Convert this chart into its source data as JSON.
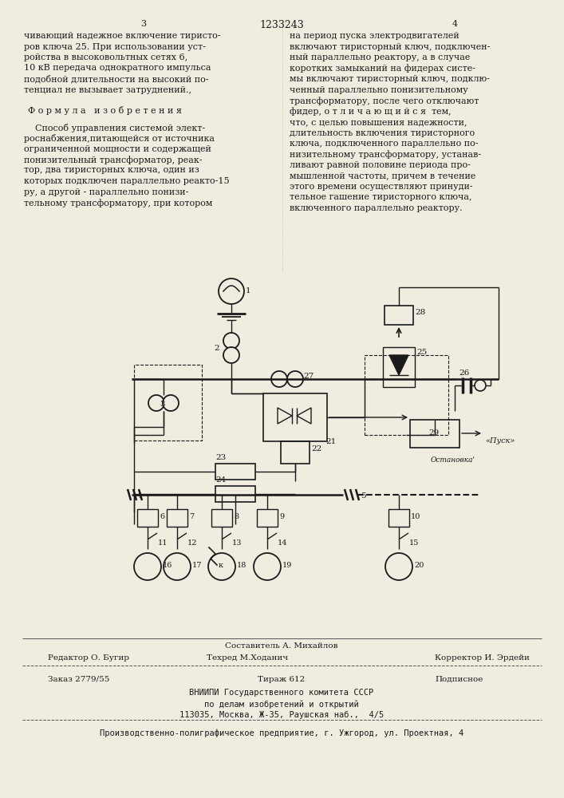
{
  "page_width": 7.07,
  "page_height": 10.0,
  "bg_color": "#f0ece0",
  "text_color": "#1a1a1a",
  "page_num_left": "3",
  "page_num_center": "1233243",
  "page_num_right": "4",
  "col1_text": [
    "чивающий надежное включение тиристо-",
    "ров ключа 25. При использовании уст-",
    "ройства в высоковольтных сетях 6,",
    "10 кВ передача однократного импульса",
    "подобной длительности на высокий по-",
    "тенциал не вызывает затруднений.,"
  ],
  "formula_header": "Ф о р м у л а   и з о б р е т е н и я",
  "formula_text": [
    "    Способ управления системой элект-",
    "роснабжения,питающейся от источника",
    "ограниченной мощности и содержащей",
    "понизительный трансформатор, реак-",
    "тор, два тиристорных ключа, один из",
    "которых подключен параллельно реакто-15",
    "ру, а другой - параллельно понизи-",
    "тельному трансформатору, при котором"
  ],
  "col2_text": [
    "на период пуска электродвигателей",
    "включают тиристорный ключ, подключен-",
    "ный параллельно реактору, а в случае",
    "коротких замыканий на фидерах систе-",
    "мы включают тиристорный ключ, подклю-",
    "ченный параллельно понизительному",
    "трансформатору, после чего отключают",
    "фидер, о т л и ч а ю щ и й с я  тем,",
    "что, с целью повышения надежности,",
    "длительность включения тиристорного",
    "ключа, подключенного параллельно по-",
    "низительному трансформатору, устанав-",
    "ливают равной половине периода про-",
    "мышленной частоты, причем в течение",
    "этого времени осуществляют принуди-",
    "тельное гашение тиристорного ключа,",
    "включенного параллельно реактору."
  ],
  "footer_compositor": "Составитель А. Михайлов",
  "footer_editor": "Редактор О. Бугир",
  "footer_techred": "Техред М.Ходанич",
  "footer_corrector": "Корректор И. Эрдейи",
  "footer_order": "Заказ 2779/55",
  "footer_circulation": "Тираж 612",
  "footer_subscription": "Подписное",
  "footer_vnipi1": "ВНИИПИ Государственного комитета СССР",
  "footer_vnipi2": "по делам изобретений и открытий",
  "footer_vnipi3": "113035, Москва, Ж-35, Раушская наб.,  4/5",
  "footer_production": "Производственно-полиграфическое предприятие, г. Ужгород, ул. Проектная, 4"
}
